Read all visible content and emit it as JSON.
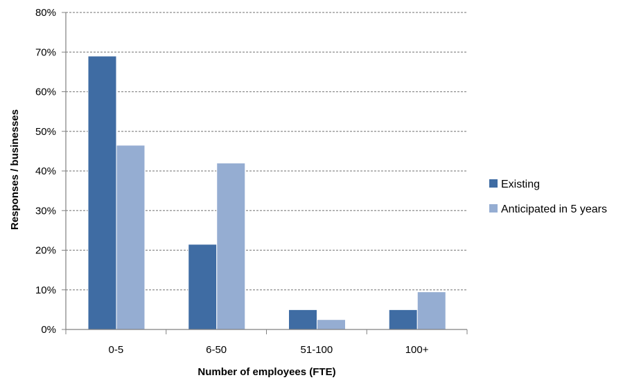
{
  "chart_data": {
    "type": "bar",
    "categories": [
      "0-5",
      "6-50",
      "51-100",
      "100+"
    ],
    "series": [
      {
        "name": "Existing",
        "values": [
          69,
          21.5,
          5,
          5
        ],
        "color": "#3f6ca3"
      },
      {
        "name": "Anticipated in 5 years",
        "values": [
          46.5,
          42,
          2.5,
          9.5
        ],
        "color": "#95add2"
      }
    ],
    "xlabel": "Number of employees (FTE)",
    "ylabel": "Responses / businesses",
    "ylim": [
      0,
      80
    ],
    "yticks": [
      0,
      10,
      20,
      30,
      40,
      50,
      60,
      70,
      80
    ],
    "ytick_labels": [
      "0%",
      "10%",
      "20%",
      "30%",
      "40%",
      "50%",
      "60%",
      "70%",
      "80%"
    ],
    "grid": true,
    "legend_position": "right"
  }
}
